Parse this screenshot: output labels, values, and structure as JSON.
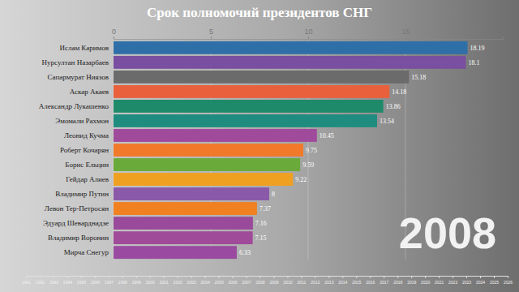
{
  "chart_data": {
    "type": "bar",
    "title": "Срок полномочий президентов СНГ",
    "orientation": "horizontal",
    "categories": [
      "Ислам Каримов",
      "Нурсултан Назарбаев",
      "Сапармурат Ниязов",
      "Аскар Акаев",
      "Александр Лукашенко",
      "Эмомали Рахмон",
      "Леонид Кучма",
      "Роберт Кочарян",
      "Борис Ельцин",
      "Гейдар Алиев",
      "Владимир Путин",
      "Левон Тер-Петросян",
      "Эдуард Шеварднадзе",
      "Владимир Воронин",
      "Мирча Снегур"
    ],
    "values": [
      18.19,
      18.1,
      15.18,
      14.18,
      13.86,
      13.54,
      10.45,
      9.75,
      9.59,
      9.22,
      8,
      7.37,
      7.16,
      7.15,
      6.33
    ],
    "colors": [
      "#2f6fa8",
      "#7a4ea0",
      "#6b6b6b",
      "#e8603c",
      "#1f8a6a",
      "#1e8c7e",
      "#a04a9c",
      "#f07a2a",
      "#6aaa3a",
      "#f0a020",
      "#8a5aa8",
      "#f08020",
      "#9a4a9a",
      "#a04a9a",
      "#9a4aa0"
    ],
    "xlim": [
      0,
      20
    ],
    "xticks": [
      0,
      5,
      10,
      15
    ],
    "x2lim": [
      1991,
      2026
    ],
    "x2ticks": [
      1991,
      1992,
      1993,
      1994,
      1995,
      1996,
      1997,
      1998,
      1999,
      2000,
      2001,
      2002,
      2003,
      2004,
      2005,
      2006,
      2007,
      2008,
      2009,
      2010,
      2011,
      2012,
      2013,
      2014,
      2015,
      2016,
      2017,
      2018,
      2019,
      2020,
      2021,
      2022,
      2023,
      2024,
      2025,
      2026
    ],
    "annotation": "2008",
    "grid": true,
    "data_labels": true
  }
}
